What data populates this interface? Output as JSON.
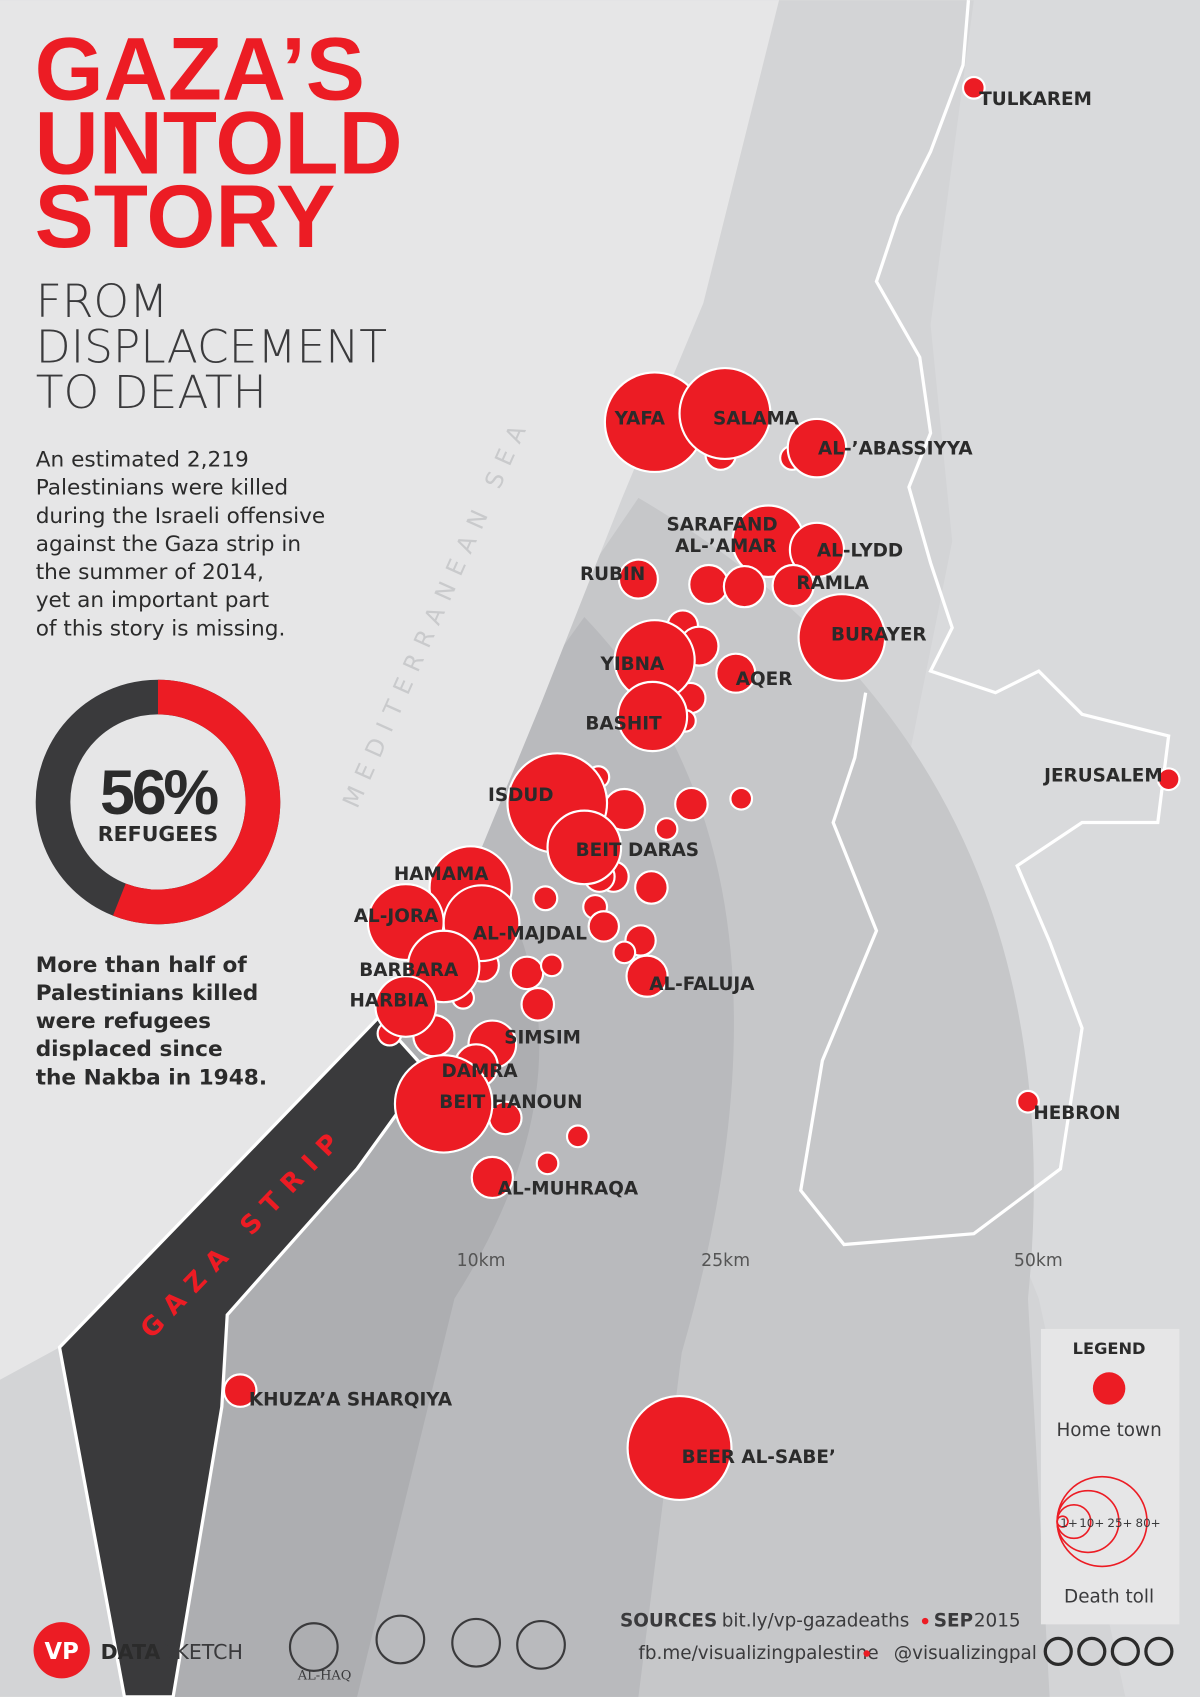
{
  "header": {
    "title": [
      "GAZA’S",
      "UNTOLD",
      "STORY"
    ],
    "subtitle": [
      "FROM",
      "DISPLACEMENT",
      "TO DEATH"
    ],
    "intro": [
      "An estimated 2,219",
      "Palestinians were killed",
      "during the Israeli offensive",
      "against the Gaza strip in",
      "the summer of 2014,",
      "yet an important part",
      "of this story is missing."
    ]
  },
  "donut": {
    "value": 56,
    "value_label": "56%",
    "label": "REFUGEES"
  },
  "note": [
    "More than half of",
    "Palestinians killed",
    "were refugees",
    "displaced since",
    "the Nakba in 1948."
  ],
  "map": {
    "sea": "MEDITERRANEAN SEA",
    "strip": "GAZA STRIP",
    "rings": [
      "10km",
      "25km",
      "50km"
    ],
    "places": [
      [
        "TULKAREM"
      ],
      [
        "YAFA"
      ],
      [
        "SALAMA"
      ],
      [
        "AL-’ABASSIYYA"
      ],
      [
        "SARAFAND",
        "AL-’AMAR"
      ],
      [
        "RUBIN"
      ],
      [
        "AL-LYDD"
      ],
      [
        "RAMLA"
      ],
      [
        "BURAYER"
      ],
      [
        "YIBNA"
      ],
      [
        "AQER"
      ],
      [
        "BASHIT"
      ],
      [
        "JERUSALEM"
      ],
      [
        "ISDUD"
      ],
      [
        "BEIT DARAS"
      ],
      [
        "HAMAMA"
      ],
      [
        "AL-JORA"
      ],
      [
        "AL-MAJDAL"
      ],
      [
        "BARBARA"
      ],
      [
        "HARBIA"
      ],
      [
        "SIMSIM"
      ],
      [
        "DAMRA"
      ],
      [
        "BEIT HANOUN"
      ],
      [
        "AL-FALUJA"
      ],
      [
        "AL-MUHRAQA"
      ],
      [
        "HEBRON"
      ],
      [
        "KHUZA’A SHARQIYA"
      ],
      [
        "BEER AL-SABE’"
      ]
    ]
  },
  "legend": {
    "title": "LEGEND",
    "home": "Home town",
    "sizes": [
      "1+",
      "10+",
      "25+",
      "80+"
    ],
    "death": "Death toll"
  },
  "footer": {
    "logo": "VP",
    "brand": [
      "DATA",
      "SKETCH"
    ],
    "partner": "AL-HAQ",
    "sources": "SOURCES",
    "link": "bit.ly/vp-gazadeaths",
    "month": "SEP",
    "year": "2015",
    "facebook": "fb.me/visualizingpalestine",
    "twitter": "@visualizingpal"
  }
}
